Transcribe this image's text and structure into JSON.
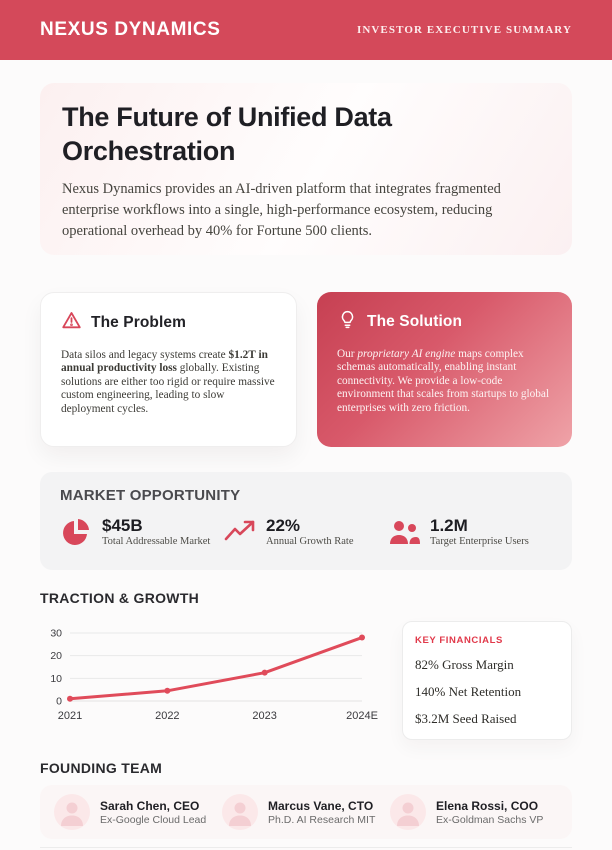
{
  "colors": {
    "header_bg": "#d4495a",
    "accent_red": "#d8475a",
    "chart_line": "#e04b5a",
    "financial_label_red": "#e1394a",
    "solution_gradient_start": "#c64052",
    "solution_gradient_end": "#efa3a8",
    "market_card_bg": "#f3f3f4",
    "avatar_bg": "#fbe8e9"
  },
  "header": {
    "brand": "NEXUS DYNAMICS",
    "doc_label": "INVESTOR EXECUTIVE SUMMARY"
  },
  "hero": {
    "title": "The Future of Unified Data Orchestration",
    "description": "Nexus Dynamics provides an AI-driven platform that integrates fragmented enterprise workflows into a single, high-performance ecosystem, reducing operational overhead by 40% for Fortune 500 clients."
  },
  "problem": {
    "icon": "warning-triangle-icon",
    "heading": "The Problem",
    "body": {
      "before": "Data silos and legacy systems create ",
      "bold": "$1.2T in annual productivity loss",
      "after": " globally. Existing solutions are either too rigid or require massive custom engineering, leading to slow deployment cycles."
    }
  },
  "solution": {
    "icon": "lightbulb-icon",
    "heading": "The Solution",
    "body": {
      "before": "Our ",
      "italic": "proprietary AI engine",
      "after": " maps complex schemas automatically, enabling instant connectivity. We provide a low-code environment that scales from startups to global enterprises with zero friction."
    }
  },
  "market": {
    "heading": "MARKET OPPORTUNITY",
    "stats": [
      {
        "icon": "pie-chart-icon",
        "value": "$45B",
        "label": "Total Addressable Market"
      },
      {
        "icon": "trend-up-icon",
        "value": "22%",
        "label": "Annual Growth Rate"
      },
      {
        "icon": "users-icon",
        "value": "1.2M",
        "label": "Target Enterprise Users"
      }
    ]
  },
  "traction": {
    "heading": "TRACTION & GROWTH"
  },
  "chart_data": {
    "type": "line",
    "title": "",
    "xlabel": "",
    "ylabel": "",
    "x": [
      "2021",
      "2022",
      "2023",
      "2024E"
    ],
    "values": [
      1,
      4.5,
      12.5,
      28
    ],
    "yticks": [
      0,
      10,
      20,
      30
    ],
    "ylim": [
      0,
      30
    ],
    "grid": true,
    "legend": false,
    "line_color": "#e04b5a"
  },
  "financials": {
    "heading": "KEY FINANCIALS",
    "items": [
      "82% Gross Margin",
      "140% Net Retention",
      "$3.2M Seed Raised"
    ]
  },
  "team": {
    "heading": "FOUNDING TEAM",
    "members": [
      {
        "name": "Sarah Chen, CEO",
        "detail": "Ex-Google Cloud Lead"
      },
      {
        "name": "Marcus Vane, CTO",
        "detail": "Ph.D. AI Research MIT"
      },
      {
        "name": "Elena Rossi, COO",
        "detail": "Ex-Goldman Sachs VP"
      }
    ]
  }
}
